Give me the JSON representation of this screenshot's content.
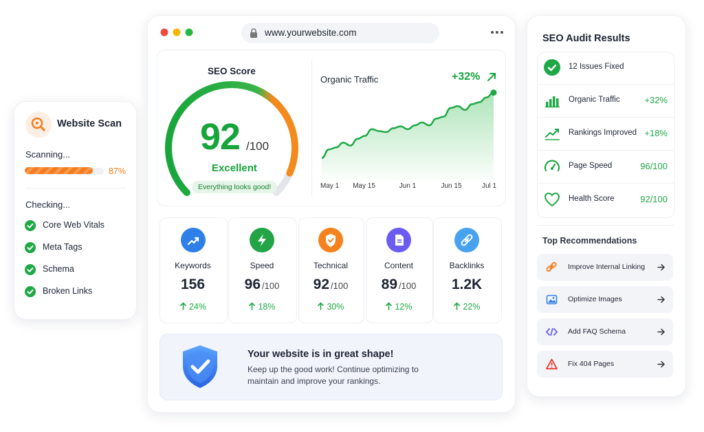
{
  "scan": {
    "title": "Website Scan",
    "status": "Scanning...",
    "progress": {
      "value": 87,
      "label": "87%"
    },
    "checking_title": "Checking...",
    "checks": [
      "Core Web Vitals",
      "Meta Tags",
      "Schema",
      "Broken Links"
    ]
  },
  "browser": {
    "url": "www.yourwebsite.com"
  },
  "seo_score": {
    "title": "SEO Score",
    "score": 92,
    "max": {
      "value": 100,
      "label": "/100"
    },
    "rating": "Excellent",
    "note": "Everything looks good!"
  },
  "traffic": {
    "title": "Organic Traffic",
    "change": "+32%",
    "xticks": [
      "May 1",
      "May 15",
      "Jun 1",
      "Jun 15",
      "Jul 1"
    ],
    "values": [
      23,
      32,
      34,
      39,
      36,
      43,
      46,
      53,
      51,
      50,
      54,
      56,
      53,
      57,
      60,
      57,
      64,
      66,
      75,
      77,
      73,
      79,
      81,
      86,
      91
    ],
    "ylim": [
      0,
      100
    ]
  },
  "metrics": [
    {
      "name": "Keywords",
      "value": "156",
      "change": "24%"
    },
    {
      "name": "Speed",
      "value": "96",
      "unit": "/100",
      "change": "18%"
    },
    {
      "name": "Technical",
      "value": "92",
      "unit": "/100",
      "change": "30%"
    },
    {
      "name": "Content",
      "value": "89",
      "unit": "/100",
      "change": "12%"
    },
    {
      "name": "Backlinks",
      "value": "1.2K",
      "change": "22%"
    }
  ],
  "banner": {
    "title": "Your website is in great shape!",
    "text": "Keep up the good work! Continue optimizing to maintain and improve your rankings."
  },
  "audit": {
    "title": "SEO Audit Results",
    "items": [
      {
        "label": "12 Issues Fixed"
      },
      {
        "label": "Organic Traffic",
        "value": "+32%"
      },
      {
        "label": "Rankings Improved",
        "value": "+18%"
      },
      {
        "label": "Page Speed",
        "value": "96/100"
      },
      {
        "label": "Health Score",
        "value": "92/100"
      }
    ]
  },
  "recommendations": {
    "title": "Top Recommendations",
    "items": [
      "Improve Internal Linking",
      "Optimize Images",
      "Add FAQ Schema",
      "Fix 404 Pages"
    ]
  }
}
